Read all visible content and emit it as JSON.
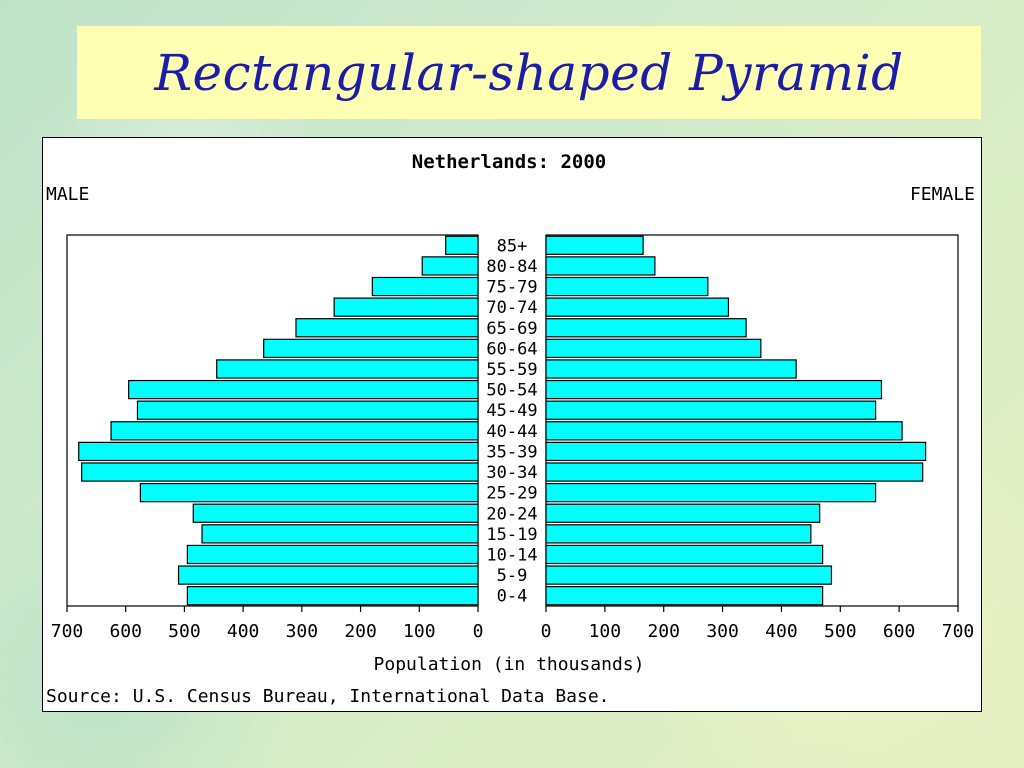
{
  "slide": {
    "title": "Rectangular-shaped Pyramid"
  },
  "chart_data": {
    "type": "bar",
    "title": "Netherlands: 2000",
    "left_label": "MALE",
    "right_label": "FEMALE",
    "xlabel": "Population (in thousands)",
    "source": "Source: U.S. Census Bureau, International Data Base.",
    "xlim": [
      0,
      700
    ],
    "ticks": [
      0,
      100,
      200,
      300,
      400,
      500,
      600,
      700
    ],
    "categories": [
      "0-4",
      "5-9",
      "10-14",
      "15-19",
      "20-24",
      "25-29",
      "30-34",
      "35-39",
      "40-44",
      "45-49",
      "50-54",
      "55-59",
      "60-64",
      "65-69",
      "70-74",
      "75-79",
      "80-84",
      "85+"
    ],
    "series": [
      {
        "name": "MALE",
        "values": [
          495,
          510,
          495,
          470,
          485,
          575,
          675,
          680,
          625,
          580,
          595,
          445,
          365,
          310,
          245,
          180,
          95,
          55
        ]
      },
      {
        "name": "FEMALE",
        "values": [
          470,
          485,
          470,
          450,
          465,
          560,
          640,
          645,
          605,
          560,
          570,
          425,
          365,
          340,
          310,
          275,
          185,
          165
        ]
      }
    ],
    "bar_color": "#00ffff",
    "grid": false
  }
}
